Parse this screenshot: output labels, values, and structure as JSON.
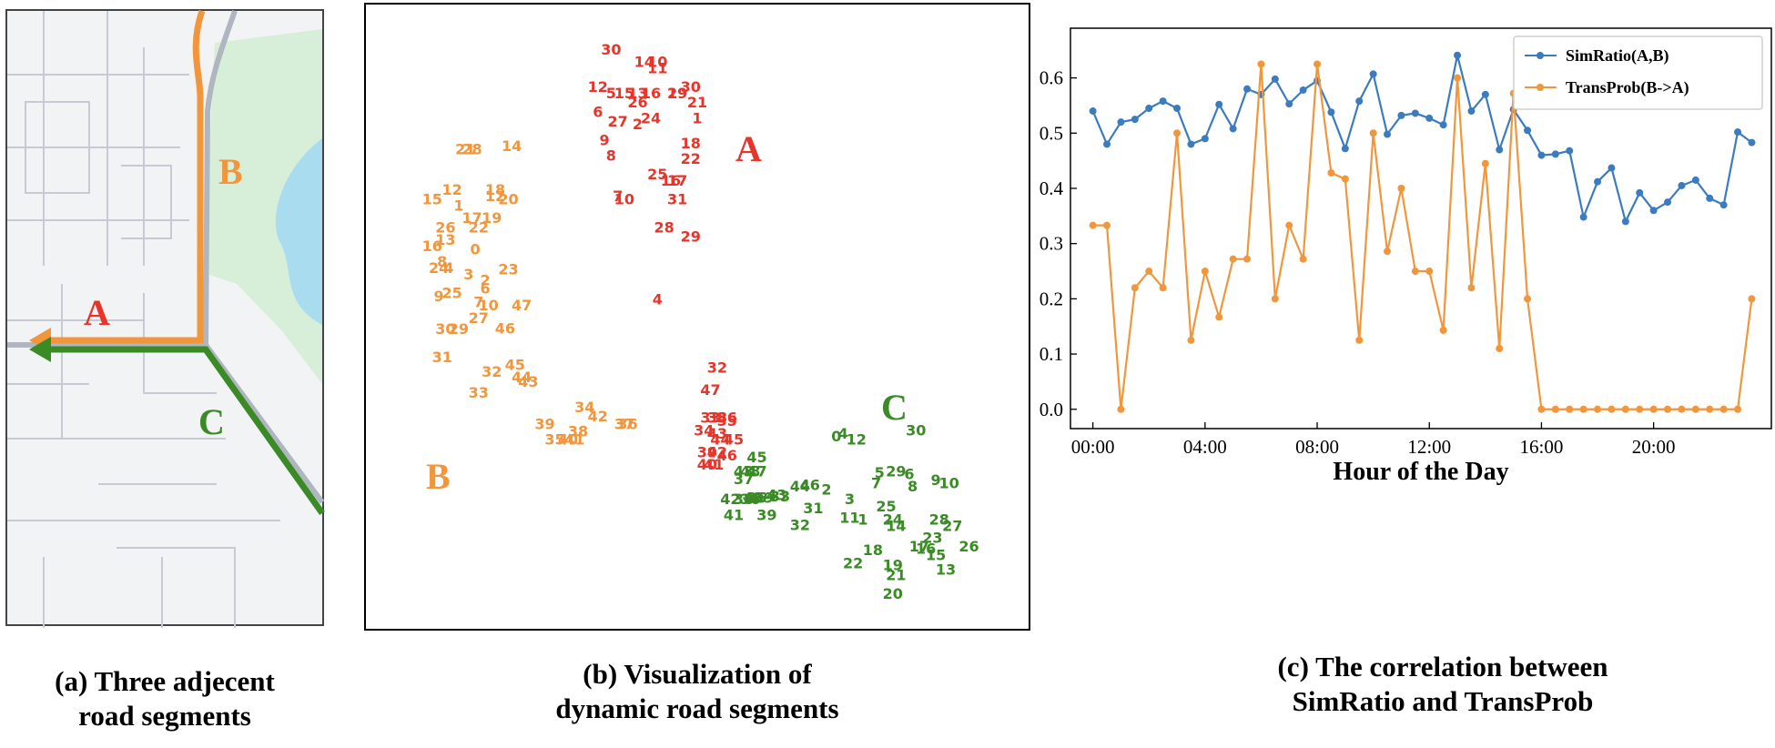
{
  "colors": {
    "red": "#e8352b",
    "orange": "#f2963c",
    "green": "#3a8a25",
    "blue": "#3b7bbf",
    "park": "#d7efd9",
    "water": "#a9dcef"
  },
  "captions": {
    "a": [
      "(a) Three adjecent",
      "road segments"
    ],
    "b": [
      "(b) Visualization of",
      "dynamic road segments"
    ],
    "c": [
      "(c) The correlation between",
      "SimRatio and TransProb"
    ]
  },
  "map": {
    "labels": {
      "a": "A",
      "b": "B",
      "c": "C"
    }
  },
  "scatter": {
    "cluster_labels": {
      "a": "A",
      "b": "B",
      "c": "C"
    },
    "red_points": [
      [
        "30",
        0.37,
        0.08
      ],
      [
        "14",
        0.42,
        0.1
      ],
      [
        "10",
        0.44,
        0.1
      ],
      [
        "11",
        0.44,
        0.11
      ],
      [
        "12",
        0.35,
        0.14
      ],
      [
        "5",
        0.37,
        0.15
      ],
      [
        "15",
        0.39,
        0.15
      ],
      [
        "13",
        0.41,
        0.15
      ],
      [
        "16",
        0.43,
        0.15
      ],
      [
        "19",
        0.47,
        0.15
      ],
      [
        "30",
        0.49,
        0.14
      ],
      [
        "29",
        0.47,
        0.15
      ],
      [
        "21",
        0.5,
        0.165
      ],
      [
        "26",
        0.41,
        0.165
      ],
      [
        "6",
        0.35,
        0.18
      ],
      [
        "1",
        0.5,
        0.19
      ],
      [
        "27",
        0.38,
        0.195
      ],
      [
        "24",
        0.43,
        0.19
      ],
      [
        "2",
        0.41,
        0.2
      ],
      [
        "9",
        0.36,
        0.225
      ],
      [
        "18",
        0.49,
        0.23
      ],
      [
        "8",
        0.37,
        0.25
      ],
      [
        "22",
        0.49,
        0.255
      ],
      [
        "25",
        0.44,
        0.28
      ],
      [
        "16",
        0.46,
        0.29
      ],
      [
        "17",
        0.47,
        0.29
      ],
      [
        "7",
        0.38,
        0.315
      ],
      [
        "10",
        0.39,
        0.32
      ],
      [
        "31",
        0.47,
        0.32
      ],
      [
        "28",
        0.45,
        0.365
      ],
      [
        "29",
        0.49,
        0.38
      ],
      [
        "4",
        0.44,
        0.48
      ],
      [
        "32",
        0.53,
        0.59
      ],
      [
        "47",
        0.52,
        0.625
      ],
      [
        "33",
        0.52,
        0.67
      ],
      [
        "38",
        0.53,
        0.67
      ],
      [
        "36",
        0.545,
        0.67
      ],
      [
        "35",
        0.545,
        0.675
      ],
      [
        "34",
        0.51,
        0.69
      ],
      [
        "43",
        0.53,
        0.695
      ],
      [
        "44",
        0.535,
        0.705
      ],
      [
        "45",
        0.555,
        0.705
      ],
      [
        "39",
        0.515,
        0.725
      ],
      [
        "42",
        0.53,
        0.725
      ],
      [
        "46",
        0.545,
        0.73
      ],
      [
        "40",
        0.515,
        0.745
      ],
      [
        "41",
        0.525,
        0.745
      ]
    ],
    "orange_points": [
      [
        "21",
        0.15,
        0.24
      ],
      [
        "28",
        0.16,
        0.24
      ],
      [
        "14",
        0.22,
        0.235
      ],
      [
        "15",
        0.1,
        0.32
      ],
      [
        "12",
        0.13,
        0.305
      ],
      [
        "18",
        0.195,
        0.305
      ],
      [
        "12",
        0.195,
        0.315
      ],
      [
        "20",
        0.215,
        0.32
      ],
      [
        "1",
        0.14,
        0.33
      ],
      [
        "17",
        0.16,
        0.35
      ],
      [
        "19",
        0.19,
        0.35
      ],
      [
        "26",
        0.12,
        0.365
      ],
      [
        "22",
        0.17,
        0.365
      ],
      [
        "16",
        0.1,
        0.395
      ],
      [
        "13",
        0.12,
        0.385
      ],
      [
        "0",
        0.165,
        0.4
      ],
      [
        "8",
        0.115,
        0.42
      ],
      [
        "24",
        0.11,
        0.43
      ],
      [
        "4",
        0.125,
        0.43
      ],
      [
        "3",
        0.155,
        0.44
      ],
      [
        "23",
        0.215,
        0.432
      ],
      [
        "2",
        0.18,
        0.45
      ],
      [
        "6",
        0.18,
        0.463
      ],
      [
        "25",
        0.13,
        0.47
      ],
      [
        "9",
        0.11,
        0.475
      ],
      [
        "7",
        0.17,
        0.485
      ],
      [
        "10",
        0.185,
        0.49
      ],
      [
        "47",
        0.235,
        0.49
      ],
      [
        "27",
        0.17,
        0.51
      ],
      [
        "46",
        0.21,
        0.527
      ],
      [
        "30",
        0.12,
        0.528
      ],
      [
        "29",
        0.14,
        0.528
      ],
      [
        "31",
        0.115,
        0.573
      ],
      [
        "32",
        0.19,
        0.596
      ],
      [
        "45",
        0.225,
        0.585
      ],
      [
        "44",
        0.235,
        0.605
      ],
      [
        "43",
        0.245,
        0.612
      ],
      [
        "33",
        0.17,
        0.63
      ],
      [
        "34",
        0.33,
        0.653
      ],
      [
        "42",
        0.35,
        0.668
      ],
      [
        "37",
        0.39,
        0.68
      ],
      [
        "36",
        0.395,
        0.68
      ],
      [
        "39",
        0.27,
        0.68
      ],
      [
        "38",
        0.32,
        0.692
      ],
      [
        "35",
        0.285,
        0.705
      ],
      [
        "40",
        0.305,
        0.705
      ],
      [
        "41",
        0.315,
        0.705
      ]
    ],
    "green_points": [
      [
        "0",
        0.71,
        0.7
      ],
      [
        "4",
        0.72,
        0.695
      ],
      [
        "12",
        0.74,
        0.705
      ],
      [
        "30",
        0.83,
        0.69
      ],
      [
        "45",
        0.59,
        0.733
      ],
      [
        "48",
        0.58,
        0.756
      ],
      [
        "47",
        0.59,
        0.756
      ],
      [
        "43",
        0.57,
        0.756
      ],
      [
        "37",
        0.57,
        0.768
      ],
      [
        "5",
        0.775,
        0.758
      ],
      [
        "29",
        0.8,
        0.756
      ],
      [
        "6",
        0.82,
        0.76
      ],
      [
        "9",
        0.86,
        0.77
      ],
      [
        "10",
        0.88,
        0.775
      ],
      [
        "7",
        0.77,
        0.775
      ],
      [
        "8",
        0.825,
        0.78
      ],
      [
        "44",
        0.655,
        0.78
      ],
      [
        "46",
        0.67,
        0.778
      ],
      [
        "2",
        0.695,
        0.785
      ],
      [
        "42",
        0.55,
        0.8
      ],
      [
        "38",
        0.57,
        0.8
      ],
      [
        "36",
        0.58,
        0.8
      ],
      [
        "40",
        0.585,
        0.798
      ],
      [
        "35",
        0.59,
        0.798
      ],
      [
        "39",
        0.6,
        0.798
      ],
      [
        "43",
        0.62,
        0.794
      ],
      [
        "33",
        0.625,
        0.796
      ],
      [
        "3",
        0.73,
        0.8
      ],
      [
        "25",
        0.785,
        0.812
      ],
      [
        "31",
        0.675,
        0.815
      ],
      [
        "41",
        0.555,
        0.826
      ],
      [
        "39",
        0.605,
        0.826
      ],
      [
        "11",
        0.73,
        0.83
      ],
      [
        "1",
        0.75,
        0.833
      ],
      [
        "24",
        0.795,
        0.833
      ],
      [
        "14",
        0.8,
        0.843
      ],
      [
        "28",
        0.865,
        0.833
      ],
      [
        "27",
        0.885,
        0.843
      ],
      [
        "32",
        0.655,
        0.842
      ],
      [
        "23",
        0.855,
        0.862
      ],
      [
        "26",
        0.91,
        0.876
      ],
      [
        "17",
        0.835,
        0.876
      ],
      [
        "16",
        0.845,
        0.88
      ],
      [
        "15",
        0.86,
        0.89
      ],
      [
        "18",
        0.765,
        0.882
      ],
      [
        "22",
        0.735,
        0.903
      ],
      [
        "19",
        0.795,
        0.906
      ],
      [
        "13",
        0.875,
        0.913
      ],
      [
        "21",
        0.8,
        0.922
      ],
      [
        "20",
        0.795,
        0.952
      ]
    ]
  },
  "chart_data": {
    "type": "line",
    "xlabel": "Hour of the Day",
    "ylabel": "",
    "xlim": [
      -0.8,
      24.2
    ],
    "ylim": [
      -0.035,
      0.69
    ],
    "xticks": [
      0,
      4,
      8,
      12,
      16,
      20
    ],
    "xtick_labels": [
      "00:00",
      "04:00",
      "08:00",
      "12:00",
      "16:00",
      "20:00"
    ],
    "yticks": [
      0.0,
      0.1,
      0.2,
      0.3,
      0.4,
      0.5,
      0.6
    ],
    "ytick_labels": [
      "0.0",
      "0.1",
      "0.2",
      "0.3",
      "0.4",
      "0.5",
      "0.6"
    ],
    "legend_position": "top-right",
    "x": [
      0,
      0.5,
      1,
      1.5,
      2,
      2.5,
      3,
      3.5,
      4,
      4.5,
      5,
      5.5,
      6,
      6.5,
      7,
      7.5,
      8,
      8.5,
      9,
      9.5,
      10,
      10.5,
      11,
      11.5,
      12,
      12.5,
      13,
      13.5,
      14,
      14.5,
      15,
      15.5,
      16,
      16.5,
      17,
      17.5,
      18,
      18.5,
      19,
      19.5,
      20,
      20.5,
      21,
      21.5,
      22,
      22.5,
      23,
      23.5
    ],
    "series": [
      {
        "name": "SimRatio(A,B)",
        "color": "#3b7bbf",
        "values": [
          0.54,
          0.48,
          0.52,
          0.525,
          0.545,
          0.558,
          0.545,
          0.48,
          0.49,
          0.552,
          0.508,
          0.58,
          0.57,
          0.598,
          0.553,
          0.578,
          0.595,
          0.538,
          0.472,
          0.558,
          0.607,
          0.498,
          0.532,
          0.536,
          0.527,
          0.515,
          0.641,
          0.54,
          0.57,
          0.47,
          0.543,
          0.505,
          0.46,
          0.462,
          0.468,
          0.348,
          0.412,
          0.437,
          0.34,
          0.392,
          0.36,
          0.375,
          0.405,
          0.415,
          0.382,
          0.37,
          0.502,
          0.483
        ]
      },
      {
        "name": "TransProb(B->A)",
        "color": "#f2963c",
        "values": [
          0.333,
          0.333,
          0.0,
          0.22,
          0.25,
          0.22,
          0.5,
          0.125,
          0.25,
          0.167,
          0.272,
          0.272,
          0.625,
          0.2,
          0.333,
          0.272,
          0.625,
          0.428,
          0.417,
          0.125,
          0.5,
          0.286,
          0.4,
          0.25,
          0.25,
          0.143,
          0.6,
          0.22,
          0.445,
          0.11,
          0.572,
          0.2,
          0.0,
          0.0,
          0.0,
          0.0,
          0.0,
          0.0,
          0.0,
          0.0,
          0.0,
          0.0,
          0.0,
          0.0,
          0.0,
          0.0,
          0.0,
          0.2
        ]
      }
    ]
  }
}
